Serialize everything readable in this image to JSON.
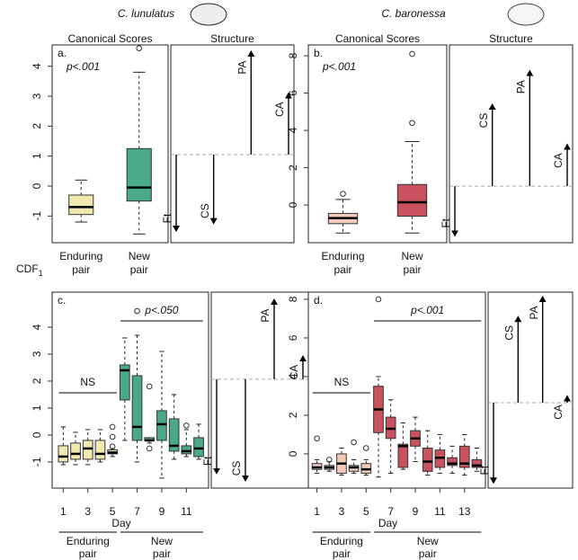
{
  "chart_data": [
    {
      "type": "box",
      "label": "a.",
      "species": "C. lunulatus",
      "panel_title": "Canonical Scores",
      "annotation": "p<.001",
      "ylim": [
        -1.89,
        4.71
      ],
      "yticks": [
        -1,
        0,
        1,
        2,
        3,
        4
      ],
      "boxes": [
        {
          "name": [
            "Enduring",
            "pair"
          ],
          "color": "#f2e9b0",
          "whisker_low": -1.2,
          "q1": -0.95,
          "median": -0.7,
          "q3": -0.3,
          "whisker_high": 0.2,
          "outliers": []
        },
        {
          "name": [
            "New",
            "pair"
          ],
          "color": "#4aaa88",
          "whisker_low": -1.6,
          "q1": -0.5,
          "median": -0.05,
          "q3": 1.25,
          "whisker_high": 3.8,
          "outliers": [
            4.6
          ]
        }
      ],
      "structure": {
        "title": "Structure",
        "baseline": 1.05,
        "arrows": [
          {
            "name": "Ft",
            "value": -1.5
          },
          {
            "name": "CS",
            "value": -1.25
          },
          {
            "name": "PA",
            "value": 4.5
          },
          {
            "name": "CA",
            "value": 3.1
          }
        ]
      }
    },
    {
      "type": "box",
      "label": "b.",
      "species": "C. baronessa",
      "panel_title": "Canonical Scores",
      "annotation": "p<.001",
      "ylim": [
        -2.02,
        8.58
      ],
      "yticks": [
        0,
        2,
        4,
        6,
        8
      ],
      "boxes": [
        {
          "name": [
            "Enduring",
            "pair"
          ],
          "color": "#f4c9b8",
          "whisker_low": -1.5,
          "q1": -1.0,
          "median": -0.7,
          "q3": -0.45,
          "whisker_high": 0.3,
          "outliers": [
            0.6
          ]
        },
        {
          "name": [
            "New",
            "pair"
          ],
          "color": "#c9525f",
          "whisker_low": -1.5,
          "q1": -0.6,
          "median": 0.15,
          "q3": 1.1,
          "whisker_high": 3.4,
          "outliers": [
            4.4,
            8.1
          ]
        }
      ],
      "structure": {
        "title": "Structure",
        "baseline": 1.01,
        "arrows": [
          {
            "name": "Ft",
            "value": -1.65
          },
          {
            "name": "CS",
            "value": 5.4
          },
          {
            "name": "PA",
            "value": 7.2
          },
          {
            "name": "CA",
            "value": 3.25
          }
        ]
      }
    },
    {
      "type": "daybox",
      "label": "c.",
      "xlabel": "Day",
      "ylabel": "CDF",
      "ylabel_sub": "1",
      "ylim": [
        -1.97,
        5.3
      ],
      "yticks": [
        -1,
        0,
        1,
        2,
        3,
        4
      ],
      "xlim": [
        0.1,
        12.8
      ],
      "xticks": [
        1,
        3,
        5,
        7,
        9,
        11
      ],
      "groups": [
        {
          "name": [
            "Enduring",
            "pair"
          ],
          "annotation": "NS",
          "color": "#f2e9b0",
          "boxes": [
            {
              "day": 1,
              "whisker_low": -1.1,
              "q1": -1.0,
              "median": -0.8,
              "q3": -0.4,
              "whisker_high": 0.3,
              "outliers": []
            },
            {
              "day": 2,
              "whisker_low": -1.1,
              "q1": -0.9,
              "median": -0.7,
              "q3": -0.3,
              "whisker_high": 0.1,
              "outliers": []
            },
            {
              "day": 3,
              "whisker_low": -1.1,
              "q1": -0.9,
              "median": -0.5,
              "q3": -0.2,
              "whisker_high": 0.2,
              "outliers": []
            },
            {
              "day": 4,
              "whisker_low": -1.0,
              "q1": -0.9,
              "median": -0.7,
              "q3": -0.2,
              "whisker_high": 0.2,
              "outliers": []
            },
            {
              "day": 5,
              "whisker_low": -0.8,
              "q1": -0.7,
              "median": -0.65,
              "q3": -0.55,
              "whisker_high": -0.5,
              "outliers": [
                0.3,
                -0.07,
                -0.43
              ]
            }
          ]
        },
        {
          "name": [
            "New",
            "pair"
          ],
          "annotation": "p<.050",
          "color": "#4aaa88",
          "boxes": [
            {
              "day": 6,
              "whisker_low": -0.2,
              "q1": 1.3,
              "median": 2.4,
              "q3": 2.6,
              "whisker_high": 3.6,
              "outliers": []
            },
            {
              "day": 7,
              "whisker_low": -1.0,
              "q1": -0.2,
              "median": 0.3,
              "q3": 2.2,
              "whisker_high": 3.7,
              "outliers": [
                4.6
              ]
            },
            {
              "day": 8,
              "whisker_low": -0.3,
              "q1": -0.2,
              "median": -0.2,
              "q3": -0.1,
              "whisker_high": -0.1,
              "outliers": [
                1.8,
                -0.5
              ]
            },
            {
              "day": 9,
              "whisker_low": -1.6,
              "q1": -0.2,
              "median": 0.4,
              "q3": 0.9,
              "whisker_high": 3.1,
              "outliers": []
            },
            {
              "day": 10,
              "whisker_low": -0.9,
              "q1": -0.6,
              "median": -0.4,
              "q3": 0.6,
              "whisker_high": 1.5,
              "outliers": []
            },
            {
              "day": 11,
              "whisker_low": -0.8,
              "q1": -0.7,
              "median": -0.6,
              "q3": -0.4,
              "whisker_high": 0.2,
              "outliers": [
                0.35
              ]
            },
            {
              "day": 12,
              "whisker_low": -0.9,
              "q1": -0.8,
              "median": -0.5,
              "q3": -0.1,
              "whisker_high": 0.4,
              "outliers": []
            }
          ]
        }
      ],
      "structure": {
        "baseline": 2.07,
        "arrows": [
          {
            "name": "Ft",
            "value": -1.43
          },
          {
            "name": "CS",
            "value": -1.7
          },
          {
            "name": "PA",
            "value": 5.03
          },
          {
            "name": "CA",
            "value": 2.93
          }
        ]
      }
    },
    {
      "type": "daybox",
      "label": "d.",
      "xlabel": "Day",
      "ylim": [
        -1.77,
        8.37
      ],
      "yticks": [
        0,
        2,
        4,
        6,
        8
      ],
      "xlim": [
        0.3,
        14.7
      ],
      "xticks": [
        1,
        3,
        5,
        7,
        9,
        11,
        13
      ],
      "groups": [
        {
          "name": [
            "Enduring",
            "pair"
          ],
          "annotation": "NS",
          "color": "#f4c9b8",
          "boxes": [
            {
              "day": 1,
              "whisker_low": -1.0,
              "q1": -0.8,
              "median": -0.7,
              "q3": -0.5,
              "whisker_high": -0.3,
              "outliers": [
                0.8
              ]
            },
            {
              "day": 2,
              "whisker_low": -0.9,
              "q1": -0.8,
              "median": -0.7,
              "q3": -0.6,
              "whisker_high": -0.4,
              "outliers": [
                -0.3
              ]
            },
            {
              "day": 3,
              "whisker_low": -1.1,
              "q1": -1.0,
              "median": -0.5,
              "q3": 0,
              "whisker_high": 0.3,
              "outliers": []
            },
            {
              "day": 4,
              "whisker_low": -1.0,
              "q1": -0.9,
              "median": -0.7,
              "q3": -0.6,
              "whisker_high": -0.3,
              "outliers": [
                0.6
              ]
            },
            {
              "day": 5,
              "whisker_low": -1.1,
              "q1": -1.0,
              "median": -0.8,
              "q3": -0.5,
              "whisker_high": -0.3,
              "outliers": [
                0.3
              ]
            }
          ]
        },
        {
          "name": [
            "New",
            "pair"
          ],
          "annotation": "p<.001",
          "color": "#c9525f",
          "boxes": [
            {
              "day": 6,
              "whisker_low": -1.2,
              "q1": 1.1,
              "median": 2.3,
              "q3": 3.5,
              "whisker_high": 4.0,
              "outliers": [
                8.0
              ]
            },
            {
              "day": 7,
              "whisker_low": -1.0,
              "q1": 0.8,
              "median": 1.3,
              "q3": 1.9,
              "whisker_high": 2.8,
              "outliers": []
            },
            {
              "day": 8,
              "whisker_low": -0.8,
              "q1": -0.7,
              "median": 0.4,
              "q3": 0.5,
              "whisker_high": 1.6,
              "outliers": []
            },
            {
              "day": 9,
              "whisker_low": -0.4,
              "q1": 0.4,
              "median": 0.8,
              "q3": 1.2,
              "whisker_high": 1.9,
              "outliers": []
            },
            {
              "day": 10,
              "whisker_low": -1.1,
              "q1": -0.9,
              "median": -0.4,
              "q3": 0.3,
              "whisker_high": 1.2,
              "outliers": []
            },
            {
              "day": 11,
              "whisker_low": -1.0,
              "q1": -0.7,
              "median": -0.2,
              "q3": 0.2,
              "whisker_high": 1.0,
              "outliers": []
            },
            {
              "day": 12,
              "whisker_low": -1.0,
              "q1": -0.6,
              "median": -0.5,
              "q3": -0.2,
              "whisker_high": 0.4,
              "outliers": []
            },
            {
              "day": 13,
              "whisker_low": -1.1,
              "q1": -0.7,
              "median": -0.5,
              "q3": 0.4,
              "whisker_high": 1.0,
              "outliers": []
            },
            {
              "day": 14,
              "whisker_low": -0.9,
              "q1": -0.7,
              "median": -0.6,
              "q3": -0.3,
              "whisker_high": 0.3,
              "outliers": []
            }
          ]
        }
      ],
      "structure": {
        "baseline": 2.65,
        "arrows": [
          {
            "name": "Ft",
            "value": -1.5
          },
          {
            "name": "CS",
            "value": 7.1
          },
          {
            "name": "PA",
            "value": 8.14
          },
          {
            "name": "CA",
            "value": 3.0
          }
        ]
      }
    }
  ]
}
